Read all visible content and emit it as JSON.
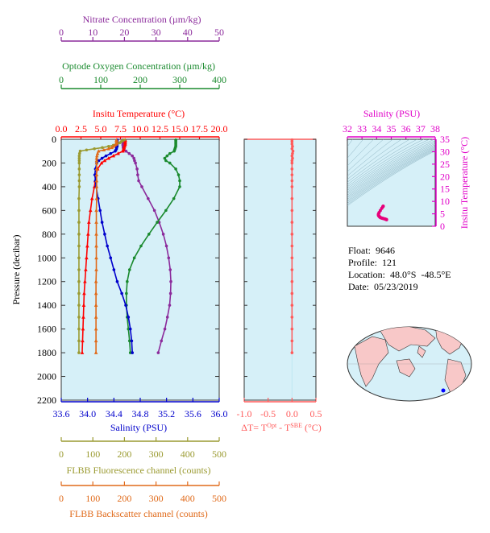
{
  "colors": {
    "nitrate": "#8b2a9b",
    "oxygen": "#1a8a2e",
    "temperature": "#ff0000",
    "salinity": "#0000cc",
    "fluorescence": "#9a9a30",
    "backscatter": "#e06a1a",
    "deltaT": "#ff5a5a",
    "ts_axis": "#e000c8",
    "panel_bg": "#d6f0f8"
  },
  "info": {
    "float": "Float:  9646",
    "profile": "Profile:  121",
    "location": "Location:  48.0°S  -48.5°E",
    "date": "Date:  05/23/2019"
  },
  "chart_data": [
    {
      "type": "line",
      "panel": "main-profile",
      "ylabel": "Pressure (decibar)",
      "ylim": [
        2200,
        0
      ],
      "yticks": [
        "0",
        "200",
        "400",
        "600",
        "800",
        "1000",
        "1200",
        "1400",
        "1600",
        "1800",
        "2000",
        "2200"
      ],
      "axes": {
        "nitrate": {
          "label": "Nitrate Concentration (µm/kg)",
          "range": [
            0,
            50
          ],
          "ticks": [
            "0",
            "10",
            "20",
            "30",
            "40",
            "50"
          ]
        },
        "oxygen": {
          "label": "Optode Oxygen Concentration (µm/kg)",
          "range": [
            0,
            400
          ],
          "ticks": [
            "0",
            "100",
            "200",
            "300",
            "400"
          ]
        },
        "temperature": {
          "label": "Insitu Temperature (°C)",
          "range": [
            0,
            20
          ],
          "ticks": [
            "0.0",
            "2.5",
            "5.0",
            "7.5",
            "10.0",
            "12.5",
            "15.0",
            "17.5",
            "20.0"
          ]
        },
        "salinity": {
          "label": "Salinity (PSU)",
          "range": [
            33.6,
            36.0
          ],
          "ticks": [
            "33.6",
            "34.0",
            "34.4",
            "34.8",
            "35.2",
            "35.6",
            "36.0"
          ]
        },
        "fluorescence": {
          "label": "FLBB Fluorescence channel (counts)",
          "range": [
            0,
            500
          ],
          "ticks": [
            "0",
            "100",
            "200",
            "300",
            "400",
            "500"
          ]
        },
        "backscatter": {
          "label": "FLBB Backscatter channel (counts)",
          "range": [
            0,
            500
          ],
          "ticks": [
            "0",
            "100",
            "200",
            "300",
            "400",
            "500"
          ]
        }
      },
      "series": [
        {
          "name": "Nitrate",
          "axis": "nitrate",
          "color": "#8b2a9b",
          "pressure": [
            5,
            10,
            20,
            30,
            40,
            50,
            60,
            70,
            80,
            90,
            100,
            120,
            140,
            160,
            180,
            200,
            250,
            300,
            350,
            400,
            500,
            600,
            700,
            800,
            900,
            1000,
            1100,
            1200,
            1300,
            1400,
            1500,
            1600,
            1700,
            1800
          ],
          "values": [
            19.5,
            19.5,
            19.5,
            19.5,
            19.5,
            19.5,
            19.6,
            19.6,
            19.7,
            19.9,
            20.5,
            21.5,
            22.5,
            23.0,
            23.2,
            23.5,
            24.0,
            24.2,
            24.5,
            25.5,
            27.5,
            29.5,
            31.0,
            32.3,
            33.3,
            34.0,
            34.5,
            34.7,
            34.6,
            34.3,
            33.6,
            32.8,
            31.7,
            30.7
          ]
        },
        {
          "name": "Oxygen",
          "axis": "oxygen",
          "color": "#1a8a2e",
          "pressure": [
            5,
            10,
            20,
            30,
            40,
            50,
            60,
            70,
            80,
            90,
            100,
            120,
            140,
            160,
            180,
            200,
            250,
            300,
            350,
            400,
            500,
            600,
            700,
            800,
            900,
            1000,
            1100,
            1200,
            1300,
            1400,
            1500,
            1600,
            1700,
            1800
          ],
          "values": [
            290,
            290,
            290,
            290,
            290,
            290,
            290,
            289,
            288,
            287,
            286,
            275,
            268,
            262,
            265,
            275,
            290,
            297,
            300,
            300,
            285,
            265,
            243,
            222,
            202,
            185,
            173,
            167,
            165,
            165,
            167,
            170,
            173,
            175
          ]
        },
        {
          "name": "Temperature",
          "axis": "temperature",
          "color": "#ff0000",
          "pressure": [
            5,
            10,
            20,
            30,
            40,
            50,
            60,
            70,
            80,
            90,
            100,
            120,
            140,
            160,
            180,
            200,
            250,
            300,
            350,
            400,
            500,
            600,
            700,
            800,
            900,
            1000,
            1100,
            1200,
            1300,
            1400,
            1500,
            1600,
            1700,
            1800
          ],
          "values": [
            8.1,
            8.1,
            8.1,
            8.1,
            8.1,
            8.05,
            8.0,
            7.95,
            7.9,
            7.85,
            7.8,
            7.2,
            6.6,
            6.0,
            5.5,
            5.1,
            4.6,
            4.4,
            4.3,
            4.2,
            3.9,
            3.7,
            3.5,
            3.4,
            3.3,
            3.2,
            3.1,
            3.0,
            2.9,
            2.85,
            2.8,
            2.75,
            2.7,
            2.65
          ]
        },
        {
          "name": "Salinity",
          "axis": "salinity",
          "color": "#0000cc",
          "pressure": [
            5,
            10,
            20,
            30,
            40,
            50,
            60,
            70,
            80,
            90,
            100,
            120,
            140,
            160,
            180,
            200,
            250,
            300,
            350,
            400,
            500,
            600,
            700,
            800,
            900,
            1000,
            1100,
            1200,
            1300,
            1400,
            1500,
            1600,
            1700,
            1800
          ],
          "values": [
            34.45,
            34.45,
            34.45,
            34.45,
            34.45,
            34.45,
            34.45,
            34.44,
            34.44,
            34.43,
            34.42,
            34.35,
            34.28,
            34.22,
            34.17,
            34.14,
            34.12,
            34.11,
            34.12,
            34.13,
            34.16,
            34.19,
            34.22,
            34.26,
            34.3,
            34.35,
            34.4,
            34.45,
            34.52,
            34.58,
            34.62,
            34.65,
            34.67,
            34.68
          ]
        },
        {
          "name": "Fluorescence",
          "axis": "fluorescence",
          "color": "#9a9a30",
          "pressure": [
            5,
            10,
            20,
            30,
            40,
            50,
            60,
            70,
            80,
            90,
            100,
            120,
            140,
            160,
            180,
            200,
            250,
            300,
            350,
            400,
            500,
            600,
            700,
            800,
            900,
            1000,
            1100,
            1200,
            1300,
            1400,
            1500,
            1600,
            1700,
            1800
          ],
          "values": [
            200,
            195,
            190,
            185,
            175,
            165,
            150,
            130,
            105,
            80,
            60,
            58,
            57,
            57,
            57,
            57,
            57,
            57,
            57,
            57,
            56,
            56,
            56,
            56,
            56,
            56,
            56,
            56,
            56,
            56,
            56,
            56,
            56,
            56
          ]
        },
        {
          "name": "Backscatter",
          "axis": "backscatter",
          "color": "#e06a1a",
          "pressure": [
            5,
            10,
            20,
            30,
            40,
            50,
            60,
            70,
            80,
            90,
            100,
            120,
            140,
            160,
            180,
            200,
            250,
            300,
            350,
            400,
            500,
            600,
            700,
            800,
            900,
            1000,
            1100,
            1200,
            1300,
            1400,
            1500,
            1600,
            1700,
            1800
          ],
          "values": [
            175,
            175,
            175,
            175,
            175,
            170,
            165,
            160,
            150,
            135,
            118,
            115,
            113,
            112,
            112,
            112,
            112,
            112,
            112,
            112,
            112,
            111,
            111,
            111,
            111,
            111,
            111,
            110,
            110,
            110,
            110,
            110,
            110,
            110
          ]
        }
      ]
    },
    {
      "type": "line",
      "panel": "delta-t",
      "xlabel": "ΔT= T^Opt - T^SBE (°C)",
      "xlim": [
        -1.0,
        0.5
      ],
      "xticks": [
        "-1.0",
        "-0.5",
        "0.0",
        "0.5"
      ],
      "ylim": [
        2200,
        0
      ],
      "series": [
        {
          "color": "#ff5a5a",
          "pressure": [
            5,
            20,
            40,
            60,
            80,
            100,
            120,
            140,
            160,
            180,
            200,
            250,
            300,
            350,
            400,
            500,
            600,
            700,
            800,
            900,
            1000,
            1100,
            1200,
            1300,
            1400,
            1500,
            1600,
            1700,
            1800
          ],
          "values": [
            0.0,
            0.0,
            0.0,
            0.01,
            0.0,
            0.02,
            0.01,
            0.0,
            0.01,
            0.0,
            0.0,
            0.0,
            0.0,
            0.0,
            0.0,
            0.0,
            0.0,
            0.0,
            0.0,
            0.0,
            0.0,
            0.0,
            0.0,
            0.0,
            0.0,
            0.0,
            0.0,
            0.0,
            0.0
          ]
        }
      ]
    },
    {
      "type": "scatter",
      "panel": "ts-diagram",
      "title": "Salinity (PSU)",
      "xlabel": "Salinity (PSU)",
      "ylabel": "Insitu Temperature (°C)",
      "xlim": [
        32,
        38
      ],
      "ylim": [
        0,
        35
      ],
      "xticks": [
        "32",
        "33",
        "34",
        "35",
        "36",
        "37",
        "38"
      ],
      "yticks": [
        "0",
        "5",
        "10",
        "15",
        "20",
        "25",
        "30",
        "35"
      ],
      "points": {
        "salinity": [
          34.45,
          34.44,
          34.42,
          34.35,
          34.25,
          34.17,
          34.13,
          34.12,
          34.13,
          34.16,
          34.19,
          34.22,
          34.26,
          34.3,
          34.35,
          34.4,
          34.45,
          34.52,
          34.58,
          34.62,
          34.65,
          34.67,
          34.68
        ],
        "temperature": [
          8.1,
          8.0,
          7.8,
          7.2,
          6.3,
          5.5,
          5.0,
          4.6,
          4.3,
          4.1,
          3.9,
          3.7,
          3.5,
          3.4,
          3.3,
          3.2,
          3.1,
          3.0,
          2.9,
          2.8,
          2.75,
          2.7,
          2.65
        ]
      }
    },
    {
      "type": "map",
      "panel": "location-map",
      "marker": {
        "lat": -48.0,
        "lon": -48.5
      }
    }
  ]
}
